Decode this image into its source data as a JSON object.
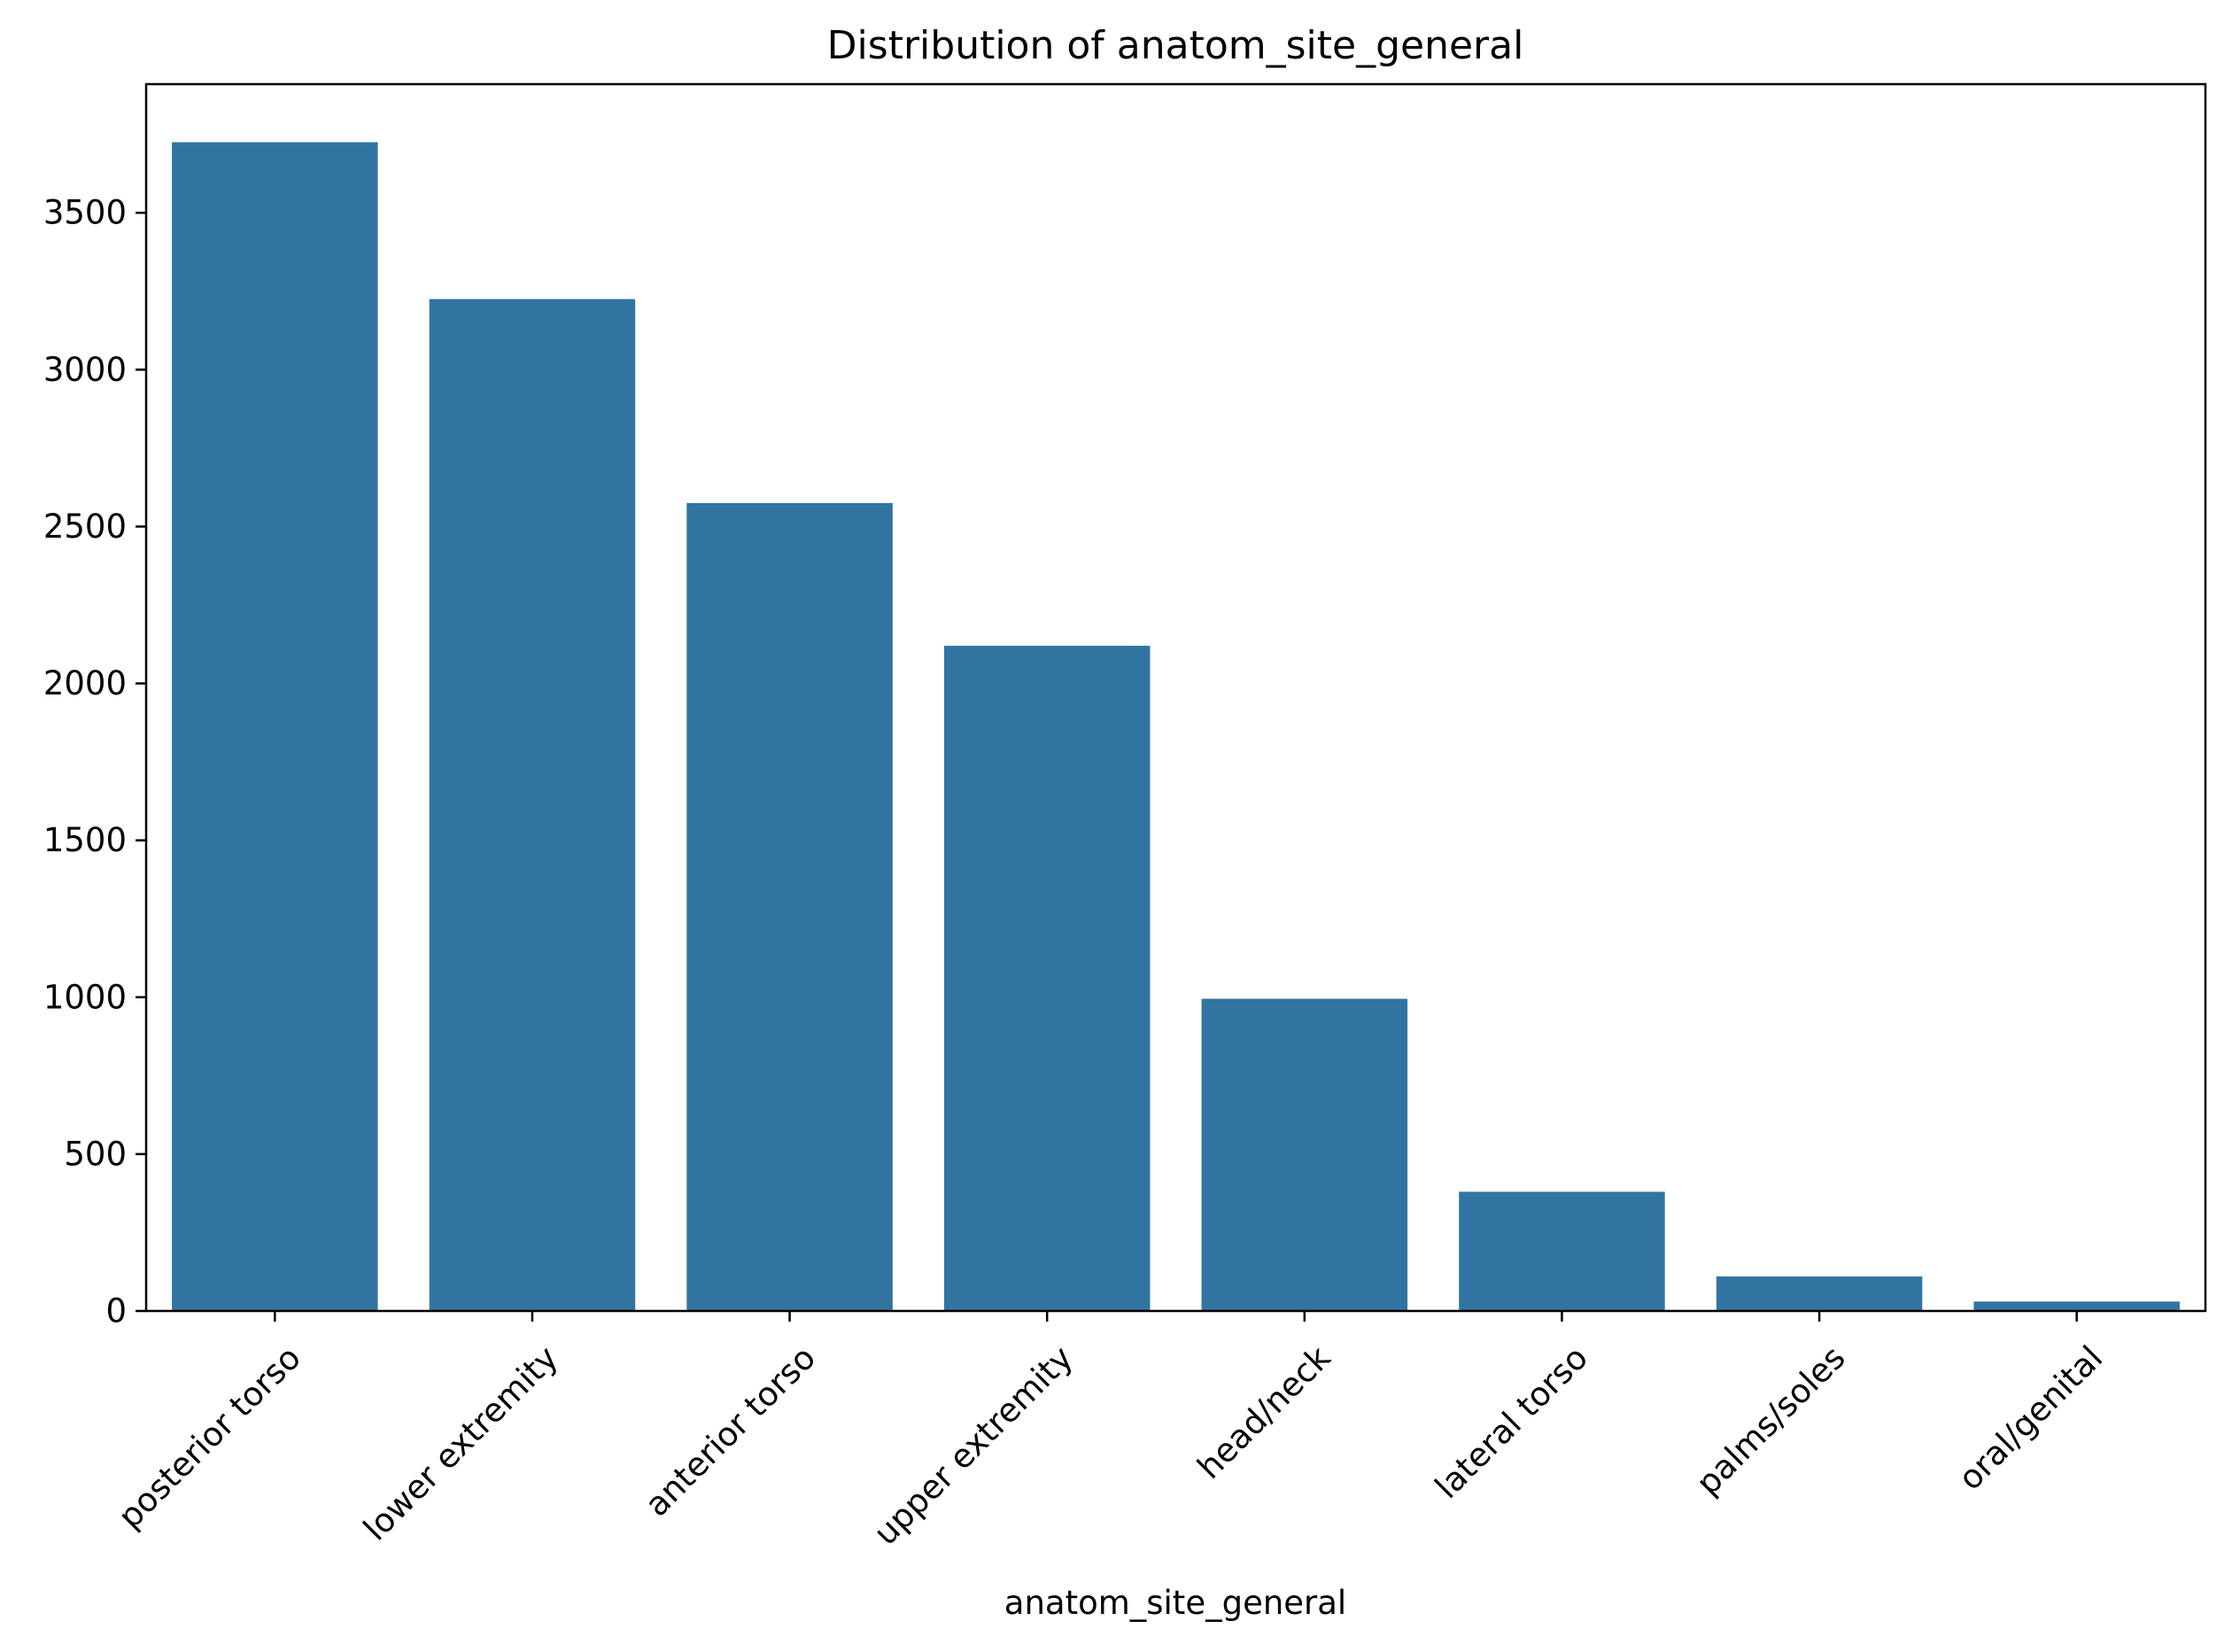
{
  "chart_data": {
    "type": "bar",
    "title": "Distribution of anatom_site_general",
    "xlabel": "anatom_site_general",
    "ylabel": "",
    "categories": [
      "posterior torso",
      "lower extremity",
      "anterior torso",
      "upper extremity",
      "head/neck",
      "lateral torso",
      "palms/soles",
      "oral/genital"
    ],
    "values": [
      3725,
      3225,
      2575,
      2120,
      995,
      380,
      110,
      30
    ],
    "ylim": [
      0,
      3910
    ],
    "yticks": [
      0,
      500,
      1000,
      1500,
      2000,
      2500,
      3000,
      3500
    ],
    "grid": false,
    "legend": "none",
    "bar_color": "#3274a1"
  }
}
